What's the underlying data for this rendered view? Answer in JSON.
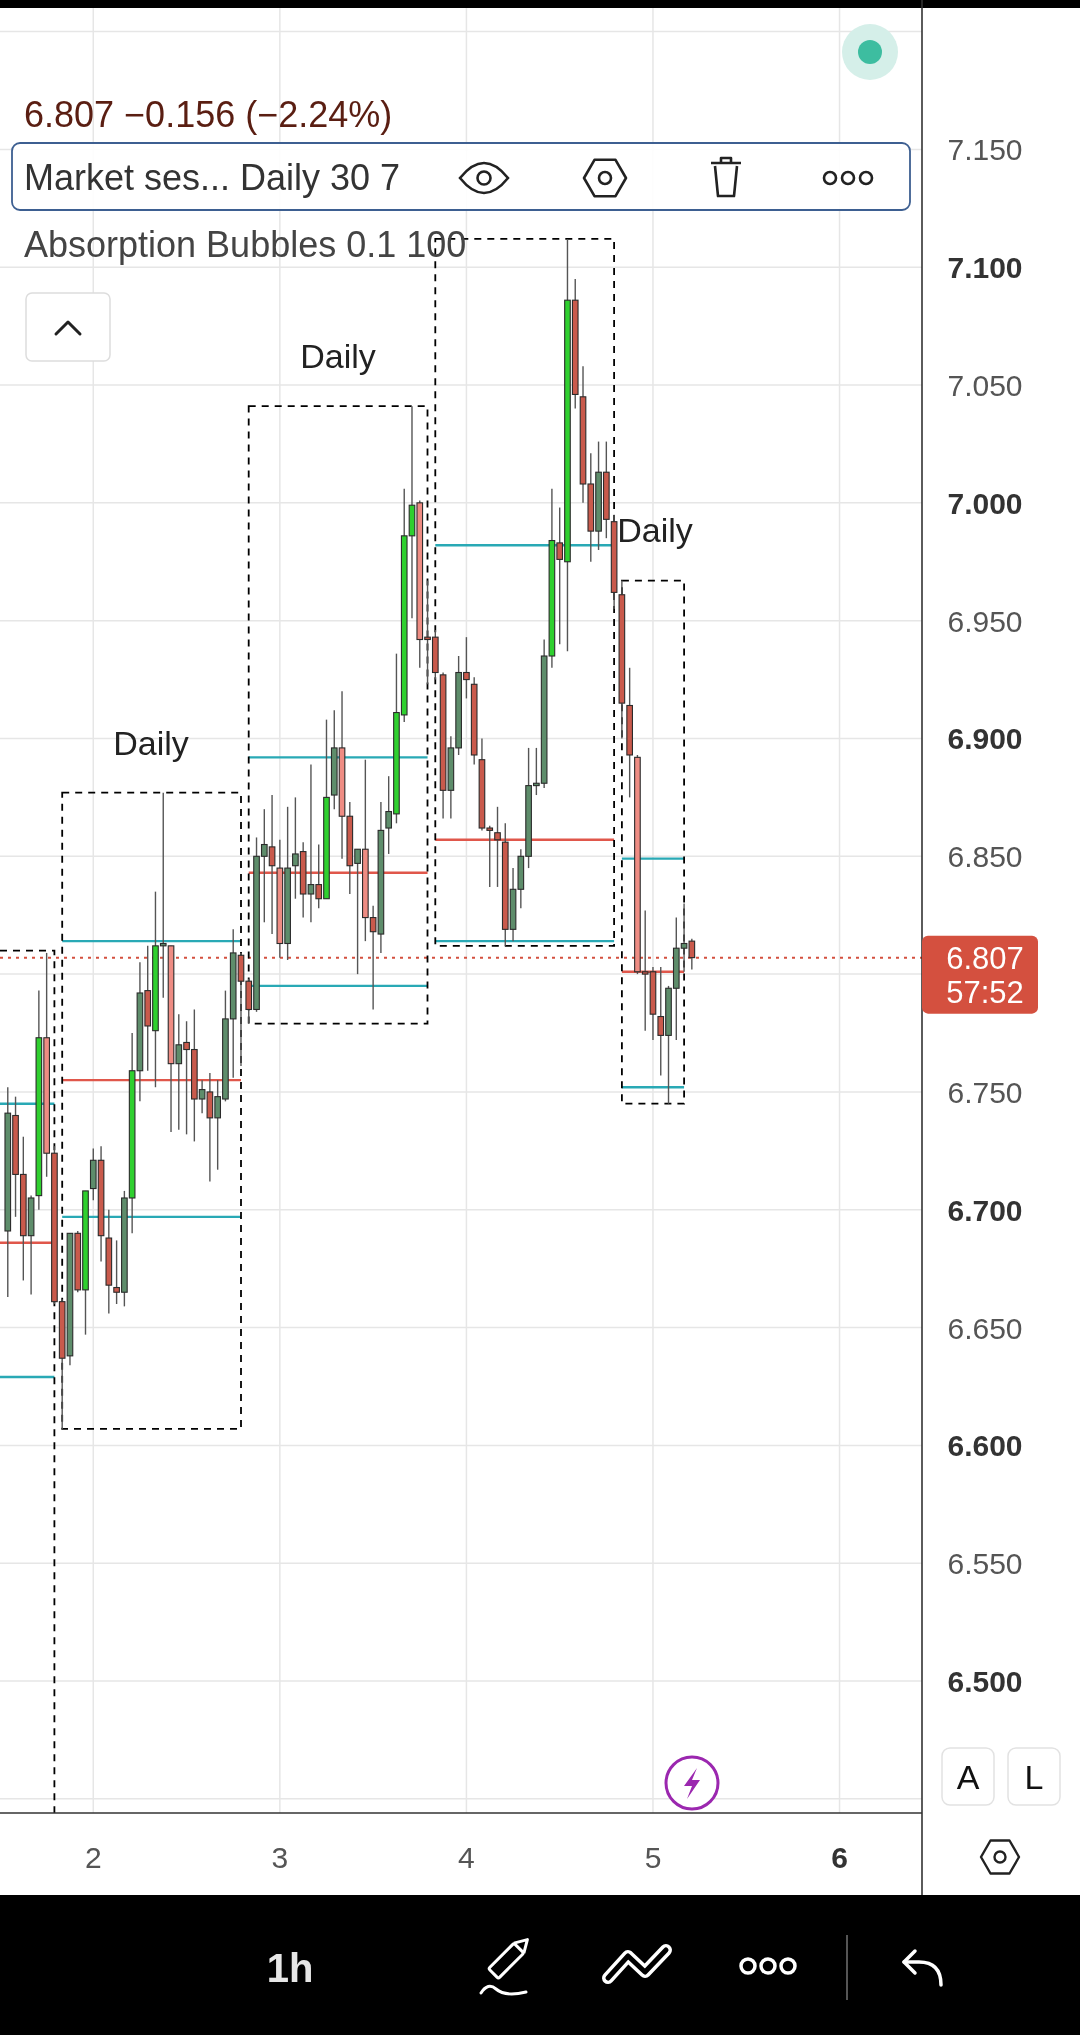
{
  "chart_data": {
    "type": "candlestick",
    "subtitle": "6.807 −0.156 (−2.24%)",
    "annotations": [
      "Market ses... Daily 30 7",
      "Absorption Bubbles 0.1 100",
      "Daily",
      "Daily",
      "Daily",
      "57:52",
      "A",
      "L",
      "1h"
    ],
    "x": [
      1.5417,
      1.5833,
      1.625,
      1.6667,
      1.7083,
      1.75,
      1.7917,
      1.8333,
      1.875,
      1.9167,
      1.9583,
      2,
      2.0417,
      2.0833,
      2.125,
      2.1667,
      2.2083,
      2.25,
      2.2917,
      2.3333,
      2.375,
      2.4167,
      2.4583,
      2.5,
      2.5417,
      2.5833,
      2.625,
      2.6667,
      2.7083,
      2.75,
      2.7917,
      2.8333,
      2.875,
      2.9167,
      2.9583,
      3,
      3.0417,
      3.0833,
      3.125,
      3.1667,
      3.2083,
      3.25,
      3.2917,
      3.3333,
      3.375,
      3.4167,
      3.4583,
      3.5,
      3.5417,
      3.5833,
      3.625,
      3.6667,
      3.7083,
      3.75,
      3.7917,
      3.8333,
      3.875,
      3.9167,
      3.9583,
      4,
      4.0417,
      4.0833,
      4.125,
      4.1667,
      4.2083,
      4.25,
      4.2917,
      4.3333,
      4.375,
      4.4167,
      4.4583,
      4.5,
      4.5417,
      4.5833,
      4.625,
      4.6667,
      4.7083,
      4.75,
      4.7917,
      4.8333,
      4.875,
      4.9167,
      4.9583,
      5,
      5.0417,
      5.0833,
      5.125,
      5.1667,
      5.2083
    ],
    "ohlc": [
      [
        6.691,
        6.752,
        6.663,
        6.741
      ],
      [
        6.74,
        6.748,
        6.697,
        6.715
      ],
      [
        6.715,
        6.731,
        6.67,
        6.689
      ],
      [
        6.689,
        6.706,
        6.664,
        6.705
      ],
      [
        6.706,
        6.793,
        6.7,
        6.773
      ],
      [
        6.773,
        6.809,
        6.714,
        6.724
      ],
      [
        6.724,
        6.727,
        6.66,
        6.661
      ],
      [
        6.661,
        6.662,
        6.607,
        6.637
      ],
      [
        6.638,
        6.69,
        6.634,
        6.69
      ],
      [
        6.69,
        6.691,
        6.665,
        6.666
      ],
      [
        6.666,
        6.708,
        6.647,
        6.708
      ],
      [
        6.709,
        6.726,
        6.704,
        6.721
      ],
      [
        6.721,
        6.727,
        6.678,
        6.689
      ],
      [
        6.688,
        6.7,
        6.656,
        6.668
      ],
      [
        6.667,
        6.687,
        6.66,
        6.665
      ],
      [
        6.665,
        6.708,
        6.659,
        6.705
      ],
      [
        6.705,
        6.775,
        6.69,
        6.759
      ],
      [
        6.759,
        6.805,
        6.746,
        6.792
      ],
      [
        6.793,
        6.812,
        6.759,
        6.778
      ],
      [
        6.776,
        6.835,
        6.752,
        6.812
      ],
      [
        6.812,
        6.877,
        6.79,
        6.813
      ],
      [
        6.812,
        6.812,
        6.733,
        6.762
      ],
      [
        6.762,
        6.783,
        6.734,
        6.77
      ],
      [
        6.771,
        6.78,
        6.732,
        6.768
      ],
      [
        6.768,
        6.785,
        6.729,
        6.747
      ],
      [
        6.747,
        6.755,
        6.741,
        6.751
      ],
      [
        6.75,
        6.758,
        6.712,
        6.739
      ],
      [
        6.739,
        6.755,
        6.717,
        6.748
      ],
      [
        6.747,
        6.793,
        6.746,
        6.781
      ],
      [
        6.781,
        6.819,
        6.756,
        6.809
      ],
      [
        6.808,
        6.809,
        6.761,
        6.797
      ],
      [
        6.797,
        6.798,
        6.779,
        6.785
      ],
      [
        6.785,
        6.858,
        6.784,
        6.85
      ],
      [
        6.85,
        6.87,
        6.822,
        6.855
      ],
      [
        6.854,
        6.876,
        6.817,
        6.846
      ],
      [
        6.845,
        6.857,
        6.807,
        6.813
      ],
      [
        6.813,
        6.871,
        6.806,
        6.845
      ],
      [
        6.846,
        6.875,
        6.832,
        6.851
      ],
      [
        6.852,
        6.856,
        6.824,
        6.834
      ],
      [
        6.834,
        6.889,
        6.822,
        6.838
      ],
      [
        6.838,
        6.855,
        6.828,
        6.832
      ],
      [
        6.832,
        6.908,
        6.832,
        6.875
      ],
      [
        6.876,
        6.912,
        6.87,
        6.896
      ],
      [
        6.896,
        6.92,
        6.849,
        6.867
      ],
      [
        6.867,
        6.873,
        6.834,
        6.846
      ],
      [
        6.847,
        6.853,
        6.8,
        6.853
      ],
      [
        6.853,
        6.891,
        6.814,
        6.824
      ],
      [
        6.824,
        6.829,
        6.785,
        6.818
      ],
      [
        6.817,
        6.873,
        6.809,
        6.861
      ],
      [
        6.862,
        6.884,
        6.851,
        6.869
      ],
      [
        6.868,
        6.936,
        6.864,
        6.911
      ],
      [
        6.91,
        7.006,
        6.907,
        6.986
      ],
      [
        6.986,
        7.041,
        6.951,
        6.999
      ],
      [
        7.0,
        7.001,
        6.93,
        6.942
      ],
      [
        6.943,
        6.967,
        6.923,
        6.942
      ],
      [
        6.943,
        6.946,
        6.925,
        6.928
      ],
      [
        6.927,
        6.928,
        6.866,
        6.878
      ],
      [
        6.878,
        6.901,
        6.866,
        6.896
      ],
      [
        6.896,
        6.935,
        6.893,
        6.928
      ],
      [
        6.928,
        6.943,
        6.917,
        6.925
      ],
      [
        6.923,
        6.926,
        6.889,
        6.893
      ],
      [
        6.891,
        6.9,
        6.861,
        6.862
      ],
      [
        6.862,
        6.863,
        6.837,
        6.861
      ],
      [
        6.86,
        6.871,
        6.837,
        6.857
      ],
      [
        6.856,
        6.864,
        6.812,
        6.819
      ],
      [
        6.819,
        6.845,
        6.814,
        6.836
      ],
      [
        6.836,
        6.853,
        6.828,
        6.85
      ],
      [
        6.85,
        6.896,
        6.845,
        6.88
      ],
      [
        6.88,
        6.896,
        6.876,
        6.881
      ],
      [
        6.881,
        6.942,
        6.879,
        6.935
      ],
      [
        6.935,
        7.006,
        6.93,
        6.984
      ],
      [
        6.983,
        6.998,
        6.94,
        6.976
      ],
      [
        6.975,
        7.112,
        6.937,
        7.086
      ],
      [
        7.086,
        7.095,
        7.04,
        7.046
      ],
      [
        7.045,
        7.058,
        7.0,
        7.008
      ],
      [
        7.008,
        7.021,
        6.975,
        6.988
      ],
      [
        6.988,
        7.026,
        6.98,
        7.013
      ],
      [
        7.013,
        7.026,
        6.985,
        6.993
      ],
      [
        6.992,
        6.995,
        6.955,
        6.962
      ],
      [
        6.961,
        6.967,
        6.9,
        6.915
      ],
      [
        6.914,
        6.93,
        6.875,
        6.893
      ],
      [
        6.892,
        6.893,
        6.8,
        6.801
      ],
      [
        6.801,
        6.827,
        6.776,
        6.8
      ],
      [
        6.801,
        6.803,
        6.772,
        6.783
      ],
      [
        6.782,
        6.803,
        6.757,
        6.774
      ],
      [
        6.774,
        6.795,
        6.745,
        6.794
      ],
      [
        6.794,
        6.824,
        6.772,
        6.811
      ],
      [
        6.811,
        6.83,
        6.801,
        6.813
      ],
      [
        6.814,
        6.815,
        6.802,
        6.807
      ]
    ],
    "colors": [
      "#5e8d6b",
      "#c95a4c",
      "#c95a4c",
      "#5e8d6b",
      "#2fd02f",
      "#ee8c83",
      "#c95a4c",
      "#c95a4c",
      "#5e8d6b",
      "#c95a4c",
      "#2fd02f",
      "#5e8d6b",
      "#c95a4c",
      "#c95a4c",
      "#c95a4c",
      "#5e8d6b",
      "#2fd02f",
      "#5e8d6b",
      "#c95a4c",
      "#2fd02f",
      "#5e8d6b",
      "#ee8c83",
      "#5e8d6b",
      "#c95a4c",
      "#c95a4c",
      "#5e8d6b",
      "#c95a4c",
      "#5e8d6b",
      "#5e8d6b",
      "#5e8d6b",
      "#c95a4c",
      "#c95a4c",
      "#5e8d6b",
      "#5e8d6b",
      "#c95a4c",
      "#ee8c83",
      "#5e8d6b",
      "#5e8d6b",
      "#c95a4c",
      "#5e8d6b",
      "#c95a4c",
      "#2fd02f",
      "#5e8d6b",
      "#ee8c83",
      "#c95a4c",
      "#5e8d6b",
      "#ee8c83",
      "#c95a4c",
      "#5e8d6b",
      "#5e8d6b",
      "#2fd02f",
      "#2fd02f",
      "#2fd02f",
      "#ee8c83",
      "#c95a4c",
      "#c95a4c",
      "#c95a4c",
      "#5e8d6b",
      "#5e8d6b",
      "#c95a4c",
      "#c95a4c",
      "#c95a4c",
      "#c95a4c",
      "#c95a4c",
      "#c95a4c",
      "#5e8d6b",
      "#5e8d6b",
      "#5e8d6b",
      "#5e8d6b",
      "#5e8d6b",
      "#2fd02f",
      "#c95a4c",
      "#2fd02f",
      "#c95a4c",
      "#c95a4c",
      "#c95a4c",
      "#5e8d6b",
      "#c95a4c",
      "#c95a4c",
      "#c95a4c",
      "#c95a4c",
      "#ee8c83",
      "#c95a4c",
      "#c95a4c",
      "#c95a4c",
      "#5e8d6b",
      "#5e8d6b",
      "#5e8d6b",
      "#c95a4c"
    ],
    "series": [
      {
        "type": "line",
        "x": [
          1.5,
          1.7917
        ],
        "values": [
          6.745,
          6.745
        ],
        "color": "#29a9b5"
      },
      {
        "type": "line",
        "x": [
          1.5,
          1.7917
        ],
        "values": [
          6.686,
          6.686
        ],
        "color": "#e0574b"
      },
      {
        "type": "line",
        "x": [
          1.5,
          1.7917
        ],
        "values": [
          6.629,
          6.629
        ],
        "color": "#29a9b5"
      },
      {
        "type": "line",
        "x": [
          1.8333,
          2.7917
        ],
        "values": [
          6.814,
          6.814
        ],
        "color": "#29a9b5"
      },
      {
        "type": "line",
        "x": [
          1.8333,
          2.7917
        ],
        "values": [
          6.755,
          6.755
        ],
        "color": "#e0574b"
      },
      {
        "type": "line",
        "x": [
          1.8333,
          2.7917
        ],
        "values": [
          6.697,
          6.697
        ],
        "color": "#29a9b5"
      },
      {
        "type": "line",
        "x": [
          2.8333,
          3.7917
        ],
        "values": [
          6.892,
          6.892
        ],
        "color": "#29a9b5"
      },
      {
        "type": "line",
        "x": [
          2.8333,
          3.7917
        ],
        "values": [
          6.843,
          6.843
        ],
        "color": "#e0574b"
      },
      {
        "type": "line",
        "x": [
          2.8333,
          3.7917
        ],
        "values": [
          6.795,
          6.795
        ],
        "color": "#29a9b5"
      },
      {
        "type": "line",
        "x": [
          3.8333,
          4.7917
        ],
        "values": [
          6.982,
          6.982
        ],
        "color": "#29a9b5"
      },
      {
        "type": "line",
        "x": [
          3.8333,
          4.7917
        ],
        "values": [
          6.857,
          6.857
        ],
        "color": "#e0574b"
      },
      {
        "type": "line",
        "x": [
          3.8333,
          4.7917
        ],
        "values": [
          6.814,
          6.814
        ],
        "color": "#29a9b5"
      },
      {
        "type": "line",
        "x": [
          4.8333,
          5.1667
        ],
        "values": [
          6.849,
          6.849
        ],
        "color": "#29a9b5"
      },
      {
        "type": "line",
        "x": [
          4.8333,
          5.1667
        ],
        "values": [
          6.801,
          6.801
        ],
        "color": "#e0574b"
      },
      {
        "type": "line",
        "x": [
          4.8333,
          5.1667
        ],
        "values": [
          6.752,
          6.752
        ],
        "color": "#29a9b5"
      }
    ],
    "xlim": [
      1.5,
      6.442
    ],
    "xticks": [
      2,
      3,
      4,
      5,
      6
    ],
    "ylim": [
      6.444,
      7.21
    ],
    "yticks": [
      {
        "value": 6.45,
        "label": null
      },
      {
        "value": 6.5,
        "label": "6.500"
      },
      {
        "value": 6.55,
        "label": "6.550"
      },
      {
        "value": 6.6,
        "label": "6.600"
      },
      {
        "value": 6.65,
        "label": "6.650"
      },
      {
        "value": 6.7,
        "label": "6.700"
      },
      {
        "value": 6.75,
        "label": "6.750"
      },
      {
        "value": 6.8,
        "label": null
      },
      {
        "value": 6.85,
        "label": "6.850"
      },
      {
        "value": 6.9,
        "label": "6.900"
      },
      {
        "value": 6.95,
        "label": "6.950"
      },
      {
        "value": 7.0,
        "label": "7.000"
      },
      {
        "value": 7.05,
        "label": "7.050"
      },
      {
        "value": 7.1,
        "label": "7.100"
      },
      {
        "value": 7.15,
        "label": "7.150"
      },
      {
        "value": 7.2,
        "label": null
      }
    ],
    "grid": true,
    "ref_lines": [
      {
        "axis": "y",
        "value": 6.807,
        "label": "6.807",
        "color": "#d4503f",
        "line_style": "dotted"
      }
    ]
  }
}
